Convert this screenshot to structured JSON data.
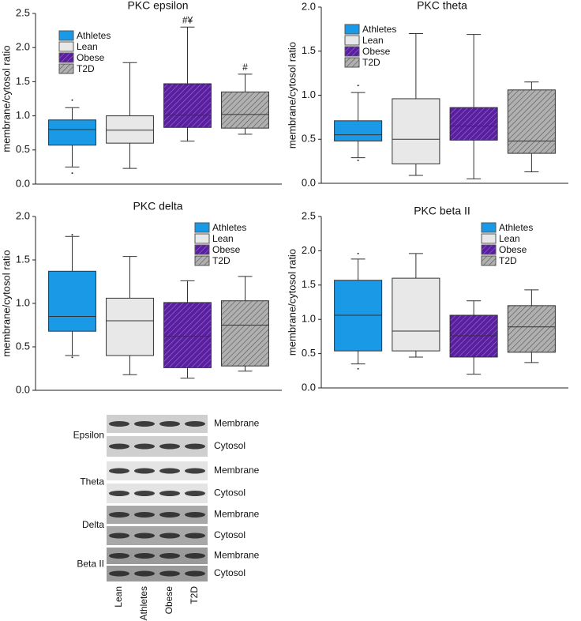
{
  "chart_data": [
    {
      "type": "box",
      "title": "PKC epsilon",
      "ylabel": "membrane/cytosol ratio",
      "legend": "upper left",
      "ylim": [
        0,
        2.5
      ],
      "yticks": [
        {
          "value": 0,
          "label": "0.0"
        },
        {
          "value": 0.5,
          "label": "0.5"
        },
        {
          "value": 1,
          "label": "1.0"
        },
        {
          "value": 1.5,
          "label": "1.5"
        },
        {
          "value": 2,
          "label": "2.0"
        },
        {
          "value": 2.5,
          "label": "2.5"
        }
      ],
      "annotations": [
        null,
        null,
        "#¥",
        "#"
      ],
      "series": [
        {
          "name": "Athletes",
          "color": "#1a9ae6",
          "hatched": false,
          "min": 0.25,
          "q1": 0.57,
          "median": 0.8,
          "q3": 0.94,
          "max": 1.12,
          "outliers": [
            1.23,
            0.16
          ]
        },
        {
          "name": "Lean",
          "color": "#e8e8e8",
          "hatched": false,
          "min": 0.23,
          "q1": 0.6,
          "median": 0.79,
          "q3": 1.0,
          "max": 1.78,
          "outliers": []
        },
        {
          "name": "Obese",
          "color": "#5a1fa0",
          "hatched": true,
          "min": 0.63,
          "q1": 0.83,
          "median": 1.01,
          "q3": 1.47,
          "max": 2.3,
          "outliers": []
        },
        {
          "name": "T2D",
          "color": "#b0b0b0",
          "hatched": true,
          "min": 0.73,
          "q1": 0.82,
          "median": 1.02,
          "q3": 1.35,
          "max": 1.61,
          "outliers": []
        }
      ]
    },
    {
      "type": "box",
      "title": "PKC theta",
      "ylabel": "membrane/cytosol ratio",
      "legend": "upper left",
      "ylim": [
        0,
        2
      ],
      "yticks": [
        {
          "value": 0,
          "label": "0.0"
        },
        {
          "value": 0.5,
          "label": "0.5"
        },
        {
          "value": 1,
          "label": "1.0"
        },
        {
          "value": 1.5,
          "label": "1.5"
        },
        {
          "value": 2,
          "label": "2.0"
        }
      ],
      "series": [
        {
          "name": "Athletes",
          "color": "#1a9ae6",
          "hatched": false,
          "min": 0.29,
          "q1": 0.48,
          "median": 0.55,
          "q3": 0.71,
          "max": 1.03,
          "outliers": [
            1.11,
            0.26
          ]
        },
        {
          "name": "Lean",
          "color": "#e8e8e8",
          "hatched": false,
          "min": 0.09,
          "q1": 0.22,
          "median": 0.5,
          "q3": 0.96,
          "max": 1.7,
          "outliers": []
        },
        {
          "name": "Obese",
          "color": "#5a1fa0",
          "hatched": true,
          "min": 0.05,
          "q1": 0.49,
          "median": 0.65,
          "q3": 0.86,
          "max": 1.69,
          "outliers": []
        },
        {
          "name": "T2D",
          "color": "#b0b0b0",
          "hatched": true,
          "min": 0.13,
          "q1": 0.34,
          "median": 0.48,
          "q3": 1.06,
          "max": 1.15,
          "outliers": []
        }
      ]
    },
    {
      "type": "box",
      "title": "PKC delta",
      "ylabel": "membrane/cytosol ratio",
      "legend": "upper right",
      "ylim": [
        0,
        2
      ],
      "yticks": [
        {
          "value": 0,
          "label": "0.0"
        },
        {
          "value": 0.5,
          "label": "0.5"
        },
        {
          "value": 1,
          "label": "1.0"
        },
        {
          "value": 1.5,
          "label": "1.5"
        },
        {
          "value": 2,
          "label": "2.0"
        }
      ],
      "series": [
        {
          "name": "Athletes",
          "color": "#1a9ae6",
          "hatched": false,
          "min": 0.4,
          "q1": 0.68,
          "median": 0.85,
          "q3": 1.37,
          "max": 1.77,
          "outliers": [
            1.79,
            0.38
          ]
        },
        {
          "name": "Lean",
          "color": "#e8e8e8",
          "hatched": false,
          "min": 0.18,
          "q1": 0.4,
          "median": 0.8,
          "q3": 1.06,
          "max": 1.54,
          "outliers": []
        },
        {
          "name": "Obese",
          "color": "#5a1fa0",
          "hatched": true,
          "min": 0.14,
          "q1": 0.26,
          "median": 0.62,
          "q3": 1.01,
          "max": 1.26,
          "outliers": []
        },
        {
          "name": "T2D",
          "color": "#b0b0b0",
          "hatched": true,
          "min": 0.22,
          "q1": 0.28,
          "median": 0.75,
          "q3": 1.03,
          "max": 1.31,
          "outliers": []
        }
      ]
    },
    {
      "type": "box",
      "title": "PKC beta II",
      "ylabel": "membrane/cytosol ratio",
      "legend": "upper right",
      "ylim": [
        0,
        2.5
      ],
      "yticks": [
        {
          "value": 0,
          "label": "0.0"
        },
        {
          "value": 0.5,
          "label": "0.5"
        },
        {
          "value": 1,
          "label": "1.0"
        },
        {
          "value": 1.5,
          "label": "1.5"
        },
        {
          "value": 2,
          "label": "2.0"
        },
        {
          "value": 2.5,
          "label": "2.5"
        }
      ],
      "series": [
        {
          "name": "Athletes",
          "color": "#1a9ae6",
          "hatched": false,
          "min": 0.35,
          "q1": 0.54,
          "median": 1.06,
          "q3": 1.57,
          "max": 1.88,
          "outliers": [
            1.96,
            0.28
          ]
        },
        {
          "name": "Lean",
          "color": "#e8e8e8",
          "hatched": false,
          "min": 0.45,
          "q1": 0.54,
          "median": 0.83,
          "q3": 1.6,
          "max": 1.96,
          "outliers": []
        },
        {
          "name": "Obese",
          "color": "#5a1fa0",
          "hatched": true,
          "min": 0.2,
          "q1": 0.45,
          "median": 0.76,
          "q3": 1.06,
          "max": 1.27,
          "outliers": []
        },
        {
          "name": "T2D",
          "color": "#b0b0b0",
          "hatched": true,
          "min": 0.37,
          "q1": 0.52,
          "median": 0.89,
          "q3": 1.2,
          "max": 1.43,
          "outliers": []
        }
      ]
    }
  ],
  "blot": {
    "lanes": [
      "Lean",
      "Athletes",
      "Obese",
      "T2D"
    ],
    "groups": [
      {
        "name": "Epsilon",
        "rows": [
          "Membrane",
          "Cytosol"
        ]
      },
      {
        "name": "Theta",
        "rows": [
          "Membrane",
          "Cytosol"
        ]
      },
      {
        "name": "Delta",
        "rows": [
          "Membrane",
          "Cytosol"
        ]
      },
      {
        "name": "Beta II",
        "rows": [
          "Membrane",
          "Cytosol"
        ]
      }
    ]
  }
}
